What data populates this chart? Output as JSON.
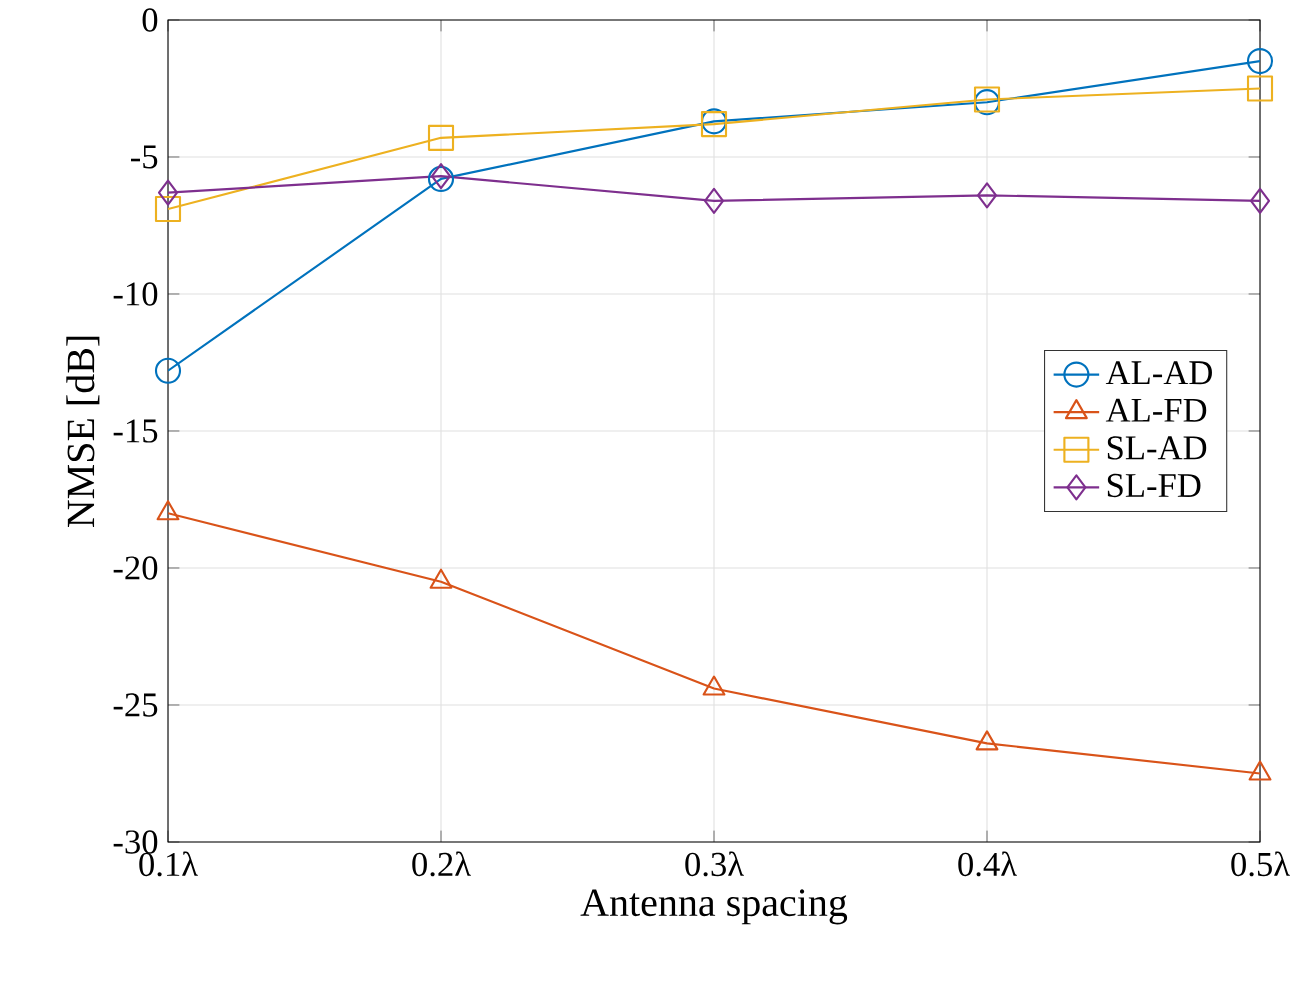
{
  "chart_data": {
    "type": "line",
    "xlabel": "Antenna spacing",
    "ylabel": "NMSE [dB]",
    "x": [
      0.1,
      0.2,
      0.3,
      0.4,
      0.5
    ],
    "series": [
      {
        "name": "AL-AD",
        "color": "#0072bd",
        "marker": "circle",
        "values": [
          -12.8,
          -5.8,
          -3.7,
          -3.0,
          -1.5
        ]
      },
      {
        "name": "AL-FD",
        "color": "#d95319",
        "marker": "triangle",
        "values": [
          -18.0,
          -20.5,
          -24.4,
          -26.4,
          -27.5
        ]
      },
      {
        "name": "SL-AD",
        "color": "#edb120",
        "marker": "square",
        "values": [
          -6.9,
          -4.3,
          -3.8,
          -2.9,
          -2.5
        ]
      },
      {
        "name": "SL-FD",
        "color": "#7e2f8e",
        "marker": "diamond",
        "values": [
          -6.3,
          -5.7,
          -6.6,
          -6.4,
          -6.6
        ]
      }
    ],
    "xlim": [
      0.1,
      0.5
    ],
    "xticks": [
      {
        "value": 0.1,
        "label": "0.1λ"
      },
      {
        "value": 0.2,
        "label": "0.2λ"
      },
      {
        "value": 0.3,
        "label": "0.3λ"
      },
      {
        "value": 0.4,
        "label": "0.4λ"
      },
      {
        "value": 0.5,
        "label": "0.5λ"
      }
    ],
    "ylim": [
      -30,
      0
    ],
    "yticks": [
      -30,
      -25,
      -20,
      -15,
      -10,
      -5,
      0
    ],
    "grid": true,
    "legend": "right",
    "line_style": "solid"
  }
}
